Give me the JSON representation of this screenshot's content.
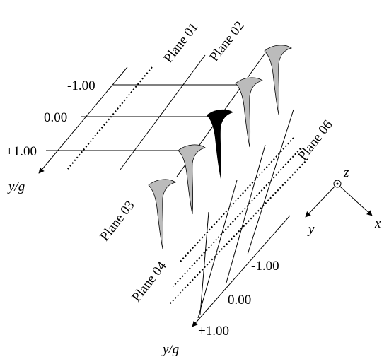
{
  "planes": [
    "Plane 01",
    "Plane 02",
    "Plane 03",
    "Plane 04",
    "Plane 06"
  ],
  "left_axis": {
    "ticks": [
      "-1.00",
      "0.00",
      "+1.00"
    ],
    "label": "y/g"
  },
  "bottom_axis": {
    "ticks": [
      "-1.00",
      "0.00",
      "+1.00"
    ],
    "label": "y/g"
  },
  "triad": {
    "z": "z",
    "y": "y",
    "x": "x"
  }
}
